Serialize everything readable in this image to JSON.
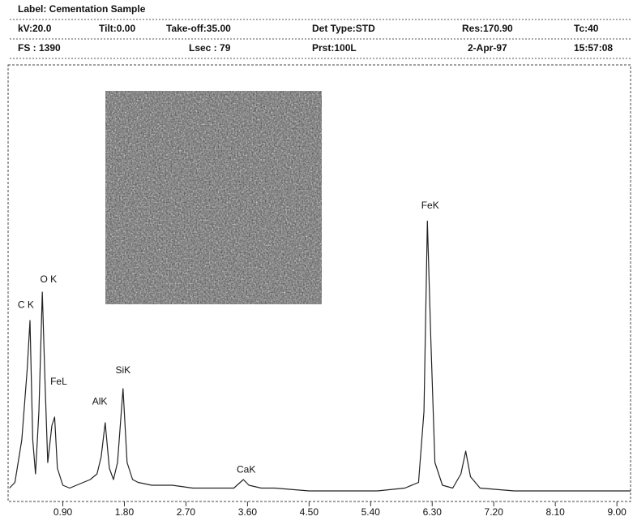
{
  "header": {
    "label": "Label: Cementation Sample",
    "row1": [
      "kV:20.0",
      "Tilt:0.00",
      "Take-off:35.00",
      "Det Type:STD",
      "Res:170.90",
      "Tc:40"
    ],
    "row2": [
      "FS : 1390",
      "Lsec : 79",
      "Prst:100L",
      "2-Apr-97",
      "15:57:08"
    ]
  },
  "chart_data": {
    "type": "line",
    "x": [
      0.12,
      0.2,
      0.3,
      0.38,
      0.42,
      0.46,
      0.5,
      0.55,
      0.6,
      0.64,
      0.68,
      0.74,
      0.78,
      0.82,
      0.9,
      1.0,
      1.1,
      1.2,
      1.3,
      1.4,
      1.46,
      1.52,
      1.58,
      1.64,
      1.7,
      1.78,
      1.84,
      1.92,
      2.0,
      2.2,
      2.5,
      2.8,
      3.1,
      3.4,
      3.54,
      3.62,
      3.8,
      4.0,
      4.5,
      5.0,
      5.5,
      5.9,
      6.1,
      6.18,
      6.23,
      6.28,
      6.34,
      6.45,
      6.6,
      6.72,
      6.79,
      6.86,
      7.0,
      7.5,
      8.0,
      8.5,
      9.0,
      9.2
    ],
    "values": [
      3,
      5,
      20,
      45,
      62,
      20,
      8,
      30,
      72,
      40,
      12,
      25,
      28,
      10,
      4,
      3,
      4,
      5,
      6,
      8,
      14,
      26,
      10,
      6,
      12,
      38,
      12,
      6,
      5,
      4,
      4,
      3,
      3,
      3,
      6,
      4,
      3,
      3,
      2,
      2,
      2,
      3,
      5,
      30,
      97,
      55,
      12,
      4,
      3,
      8,
      16,
      7,
      3,
      2,
      2,
      2,
      2,
      2
    ],
    "color": "#222222",
    "xlim": [
      0.1,
      9.2
    ],
    "ylim": [
      0,
      100
    ],
    "xticks": [
      {
        "value": 0.9,
        "label": "0.90"
      },
      {
        "value": 1.8,
        "label": "1.80"
      },
      {
        "value": 2.7,
        "label": "2.70"
      },
      {
        "value": 3.6,
        "label": "3.60"
      },
      {
        "value": 4.5,
        "label": "4.50"
      },
      {
        "value": 5.4,
        "label": "5.40"
      },
      {
        "value": 6.3,
        "label": "6.30"
      },
      {
        "value": 7.2,
        "label": "7.20"
      },
      {
        "value": 8.1,
        "label": "8.10"
      },
      {
        "value": 9.0,
        "label": "9.00"
      }
    ],
    "annotations": [
      {
        "text": "C K",
        "x": 0.36,
        "y": 65
      },
      {
        "text": "O K",
        "x": 0.69,
        "y": 74
      },
      {
        "text": "FeL",
        "x": 0.84,
        "y": 38
      },
      {
        "text": "AlK",
        "x": 1.44,
        "y": 31
      },
      {
        "text": "SiK",
        "x": 1.78,
        "y": 42
      },
      {
        "text": "CaK",
        "x": 3.58,
        "y": 7
      },
      {
        "text": "FeK",
        "x": 6.27,
        "y": 100
      }
    ]
  }
}
